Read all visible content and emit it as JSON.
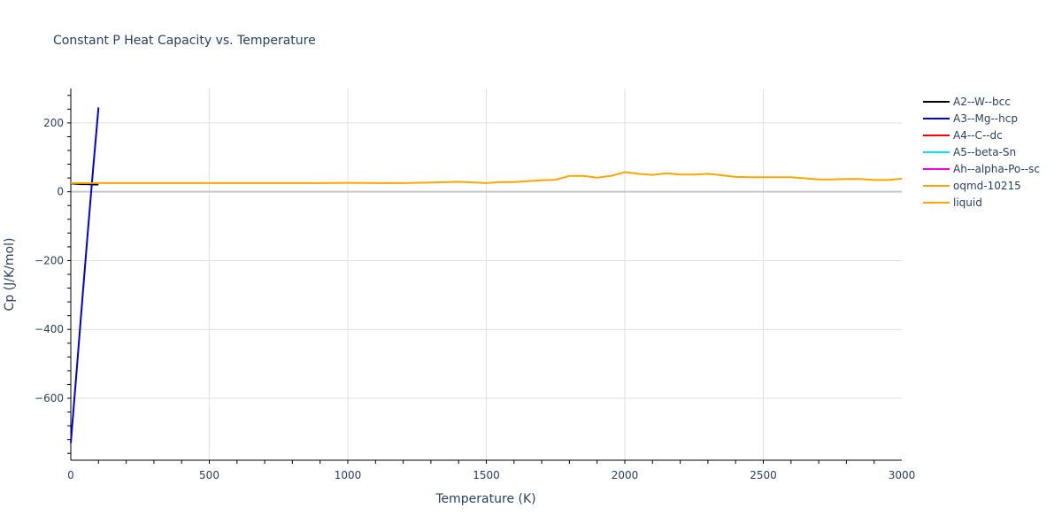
{
  "chart_data": {
    "type": "line",
    "title": "Constant P Heat Capacity vs. Temperature",
    "xlabel": "Temperature (K)",
    "ylabel": "Cp (J/K/mol)",
    "xlim": [
      0,
      3000
    ],
    "ylim": [
      -780,
      300
    ],
    "x_ticks": [
      0,
      500,
      1000,
      1500,
      2000,
      2500,
      3000
    ],
    "x_tick_labels": [
      "0",
      "500",
      "1000",
      "1500",
      "2000",
      "2500",
      "3000"
    ],
    "y_ticks": [
      -600,
      -400,
      -200,
      0,
      200
    ],
    "y_tick_labels": [
      "−600",
      "−400",
      "−200",
      "0",
      "200"
    ],
    "grid": true,
    "legend_position": "right",
    "series": [
      {
        "name": "A2--W--bcc",
        "color": "#000000",
        "x": [
          0,
          20,
          40,
          60,
          80,
          100
        ],
        "y": [
          24,
          23,
          22,
          22,
          21,
          21
        ]
      },
      {
        "name": "A3--Mg--hcp",
        "color": "#0000dd",
        "x": [
          0,
          20,
          40,
          60,
          80,
          100
        ],
        "y": [
          -730,
          -530,
          -330,
          -130,
          60,
          245
        ]
      },
      {
        "name": "A4--C--dc",
        "color": "#ff0000",
        "x": [],
        "y": []
      },
      {
        "name": "A5--beta-Sn",
        "color": "#00e5ee",
        "x": [],
        "y": []
      },
      {
        "name": "Ah--alpha-Po--sc",
        "color": "#ee00ee",
        "x": [],
        "y": []
      },
      {
        "name": "oqmd-10215",
        "color": "#ffa500",
        "x": [],
        "y": []
      },
      {
        "name": "liquid",
        "color": "#ffa500",
        "x": [
          0,
          100,
          200,
          300,
          400,
          500,
          600,
          700,
          800,
          900,
          1000,
          1100,
          1200,
          1300,
          1400,
          1500,
          1550,
          1600,
          1650,
          1700,
          1750,
          1800,
          1850,
          1900,
          1950,
          2000,
          2050,
          2100,
          2150,
          2200,
          2250,
          2300,
          2350,
          2400,
          2450,
          2500,
          2550,
          2600,
          2650,
          2700,
          2750,
          2800,
          2850,
          2900,
          2950,
          3000
        ],
        "y": [
          25,
          25,
          25,
          25,
          25,
          25,
          25,
          25,
          25,
          25,
          26,
          25,
          25,
          27,
          29,
          25,
          28,
          28,
          31,
          33,
          35,
          46,
          46,
          41,
          46,
          57,
          52,
          49,
          54,
          50,
          50,
          52,
          48,
          43,
          42,
          42,
          42,
          42,
          39,
          36,
          36,
          37,
          37,
          34,
          34,
          38
        ]
      }
    ]
  }
}
